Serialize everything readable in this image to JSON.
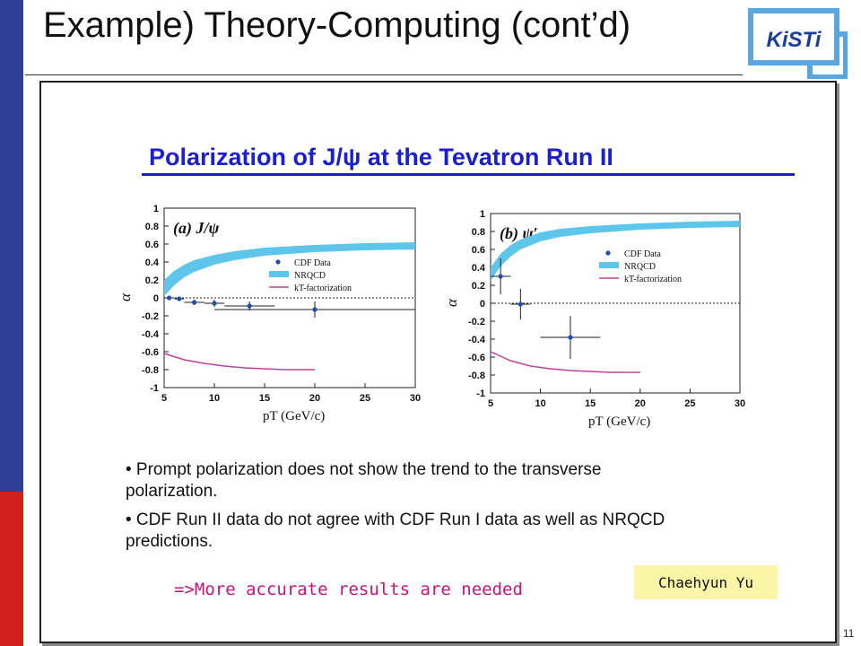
{
  "slide": {
    "title": "Example) Theory-Computing (cont’d)",
    "logo_text": "KiSTi",
    "figure_title": "Polarization of J/ψ at the Tevatron Run II",
    "bullets": [
      "• Prompt polarization does not show the trend to the transverse polarization.",
      "• CDF Run II data do not agree with CDF Run I data as well as NRQCD predictions."
    ],
    "conclusion": "=>More accurate results are needed",
    "author": "Chaehyun Yu",
    "page_number": "11",
    "colors": {
      "left_bar_top": "#2f3e97",
      "left_bar_bottom": "#cf1f1f",
      "figure_title": "#1b1fd0",
      "conclusion": "#c0157e",
      "author_box": "#fbf6a7"
    }
  },
  "chart_data": [
    {
      "type": "scatter",
      "panel_label": "(a) J/ψ",
      "xlabel": "pT (GeV/c)",
      "ylabel": "α",
      "xlim": [
        5,
        30
      ],
      "ylim": [
        -1,
        1
      ],
      "xticks": [
        5,
        10,
        15,
        20,
        25,
        30
      ],
      "yticks": [
        -1,
        -0.8,
        -0.6,
        -0.4,
        -0.2,
        0,
        0.2,
        0.4,
        0.6,
        0.8,
        1
      ],
      "legend": [
        "CDF Data",
        "NRQCD",
        "kT-factorization"
      ],
      "legend_position": "right",
      "series": [
        {
          "name": "CDF Data",
          "kind": "points",
          "color": "#1f4fa8",
          "x": [
            5.5,
            6.5,
            8.0,
            10.0,
            13.5,
            20.0
          ],
          "xerr": [
            0.5,
            0.5,
            1.0,
            1.0,
            2.5,
            10.0
          ],
          "y": [
            0.0,
            -0.01,
            -0.05,
            -0.06,
            -0.09,
            -0.13
          ],
          "yerr": [
            0.02,
            0.02,
            0.03,
            0.04,
            0.05,
            0.09
          ]
        },
        {
          "name": "NRQCD",
          "kind": "band",
          "color": "#5dc6ea",
          "x": [
            5,
            6,
            7,
            8,
            10,
            12,
            15,
            20,
            25,
            30
          ],
          "y_low": [
            0.02,
            0.14,
            0.23,
            0.29,
            0.37,
            0.42,
            0.47,
            0.51,
            0.53,
            0.54
          ],
          "y_high": [
            0.2,
            0.3,
            0.37,
            0.42,
            0.48,
            0.52,
            0.56,
            0.59,
            0.61,
            0.62
          ]
        },
        {
          "name": "kT-factorization",
          "kind": "line",
          "color": "#c0409a",
          "x": [
            5,
            7,
            9,
            11,
            13,
            15,
            17,
            20
          ],
          "y": [
            -0.62,
            -0.69,
            -0.73,
            -0.76,
            -0.78,
            -0.79,
            -0.8,
            -0.8
          ]
        }
      ]
    },
    {
      "type": "scatter",
      "panel_label": "(b) ψ′",
      "xlabel": "pT (GeV/c)",
      "ylabel": "α",
      "xlim": [
        5,
        30
      ],
      "ylim": [
        -1,
        1
      ],
      "xticks": [
        5,
        10,
        15,
        20,
        25,
        30
      ],
      "yticks": [
        -1,
        -0.8,
        -0.6,
        -0.4,
        -0.2,
        0,
        0.2,
        0.4,
        0.6,
        0.8,
        1
      ],
      "legend": [
        "CDF Data",
        "NRQCD",
        "kT-factorization"
      ],
      "legend_position": "right",
      "series": [
        {
          "name": "CDF Data",
          "kind": "points",
          "color": "#1f4fa8",
          "x": [
            6.0,
            8.0,
            13.0
          ],
          "xerr": [
            1.0,
            1.0,
            3.0
          ],
          "y": [
            0.3,
            -0.01,
            -0.38
          ],
          "yerr": [
            0.2,
            0.17,
            0.24
          ]
        },
        {
          "name": "NRQCD",
          "kind": "band",
          "color": "#5dc6ea",
          "x": [
            5,
            6,
            7,
            8,
            10,
            12,
            15,
            20,
            25,
            30
          ],
          "y_low": [
            0.25,
            0.41,
            0.52,
            0.6,
            0.69,
            0.74,
            0.78,
            0.82,
            0.84,
            0.85
          ],
          "y_high": [
            0.4,
            0.55,
            0.65,
            0.71,
            0.79,
            0.83,
            0.86,
            0.89,
            0.91,
            0.92
          ]
        },
        {
          "name": "kT-factorization",
          "kind": "line",
          "color": "#c0409a",
          "x": [
            5,
            7,
            9,
            11,
            13,
            15,
            17,
            20
          ],
          "y": [
            -0.54,
            -0.64,
            -0.7,
            -0.73,
            -0.75,
            -0.76,
            -0.77,
            -0.77
          ]
        }
      ]
    }
  ]
}
